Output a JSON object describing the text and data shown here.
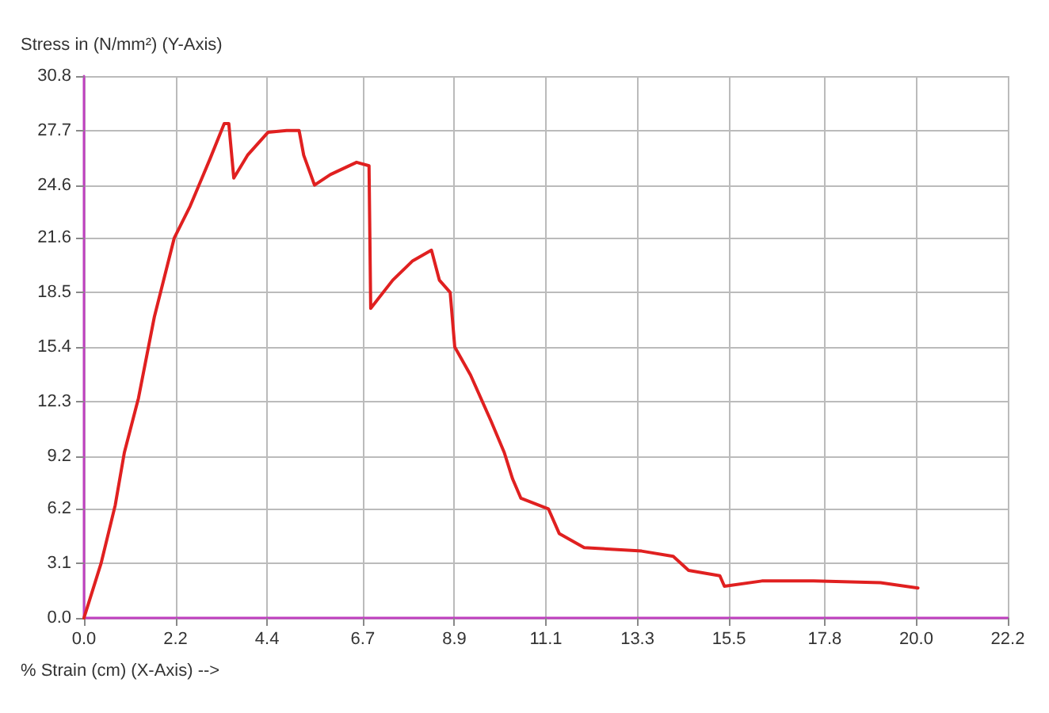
{
  "chart_data": {
    "type": "line",
    "xlabel": "% Strain (cm) (X-Axis) -->",
    "ylabel": "Stress in (N/mm²) (Y-Axis)",
    "xlim": [
      0,
      22.2
    ],
    "xticks": [
      {
        "value": 0,
        "label": "0.0"
      },
      2.2,
      4.4,
      6.7,
      8.9,
      11.1,
      13.3,
      15.5,
      17.8,
      {
        "value": 20,
        "label": "20.0"
      },
      22.2
    ],
    "ylim": [
      0,
      30.8
    ],
    "yticks": [
      {
        "value": 0,
        "label": "0.0"
      },
      3.1,
      6.2,
      9.2,
      12.3,
      15.4,
      18.5,
      21.6,
      24.6,
      27.7,
      30.8
    ],
    "grid": true,
    "marker": "none",
    "line_style": "solid",
    "series": [
      {
        "color": "#e02020",
        "x": [
          0,
          0.41,
          0.75,
          0.97,
          1.31,
          1.69,
          2.17,
          2.55,
          3.03,
          3.37,
          3.48,
          3.6,
          3.93,
          4.42,
          4.87,
          5.17,
          5.28,
          5.54,
          5.92,
          6.55,
          6.85,
          6.89,
          7.42,
          7.9,
          8.35,
          8.54,
          8.8,
          8.91,
          9.29,
          9.78,
          10.1,
          10.3,
          10.5,
          11.16,
          11.42,
          12.02,
          13.4,
          14.16,
          14.53,
          15.28,
          15.39,
          16.29,
          17.53,
          19.14,
          20.04
        ],
        "values": [
          0,
          3.1,
          6.4,
          9.4,
          12.5,
          17.1,
          21.6,
          23.4,
          26.1,
          28.1,
          28.1,
          25.0,
          26.3,
          27.6,
          27.7,
          27.7,
          26.3,
          24.6,
          25.2,
          25.9,
          25.7,
          17.6,
          19.2,
          20.3,
          20.9,
          19.2,
          18.5,
          15.4,
          13.8,
          11.2,
          9.4,
          7.9,
          6.8,
          6.2,
          4.8,
          4.0,
          3.8,
          3.5,
          2.7,
          2.4,
          1.8,
          2.1,
          2.1,
          2.0,
          1.7
        ]
      }
    ]
  }
}
